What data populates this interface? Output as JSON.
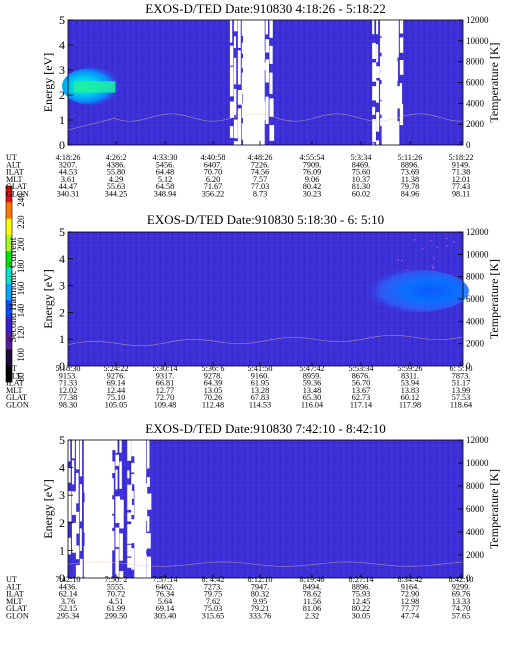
{
  "colorbar": {
    "label": "Second Harmonic Current",
    "ticks": [
      "240",
      "220",
      "200",
      "180",
      "160",
      "140",
      "120",
      "100",
      "80"
    ],
    "colors": [
      "#e01010",
      "#ff7a00",
      "#ffff00",
      "#a0ff20",
      "#00e600",
      "#00e6c8",
      "#00aaff",
      "#0050ff",
      "#3c1ed0",
      "#5a1e96",
      "#1e0a3c",
      "#000000"
    ]
  },
  "chart_data": [
    {
      "type": "heatmap",
      "title": "EXOS-D/TED   Date:910830  4:18:26 - 5:18:22",
      "ylabel": "Energy [eV]",
      "y2label": "Temperature [K]",
      "ylim": [
        0,
        5
      ],
      "y2lim": [
        0,
        12000
      ],
      "yticks": [
        "0",
        "1",
        "2",
        "3",
        "4",
        "5"
      ],
      "y2ticks": [
        "0",
        "2000",
        "4000",
        "6000",
        "8000",
        "10000",
        "12000"
      ],
      "background": "#3c2fd6",
      "features": [
        {
          "kind": "high-intensity blob",
          "x": [
            0.0,
            0.13
          ],
          "y": [
            1.6,
            3.1
          ],
          "color": "#00e0d0"
        },
        {
          "kind": "gap",
          "x": [
            0.41,
            0.52
          ],
          "y": [
            0,
            5
          ]
        },
        {
          "kind": "gap",
          "x": [
            0.77,
            0.85
          ],
          "y": [
            0,
            5
          ]
        },
        {
          "kind": "temperature trace",
          "color": "#e8c0a0"
        }
      ],
      "row_labels": [
        "UT",
        "ALT",
        "ILAT",
        "MLT",
        "GLAT",
        "GLON"
      ],
      "columns": [
        [
          "4:18:26",
          "3207.",
          "44.53",
          "3.61",
          "44.47",
          "340.31"
        ],
        [
          "4:26:2",
          "4386.",
          "55.80",
          "4.29",
          "55.63",
          "344.25"
        ],
        [
          "4:33:30",
          "5456.",
          "64.48",
          "5.12",
          "64.58",
          "348.94"
        ],
        [
          "4:40:58",
          "6407.",
          "70.70",
          "6.20",
          "71.67",
          "356.22"
        ],
        [
          "4:48:26",
          "7226.",
          "74.56",
          "7.57",
          "77.03",
          "8.73"
        ],
        [
          "4:55:54",
          "7909.",
          "76.09",
          "9.06",
          "80.42",
          "30.23"
        ],
        [
          "5:3:34",
          "8469.",
          "75.60",
          "10.37",
          "81.30",
          "60.02"
        ],
        [
          "5:11:26",
          "8896.",
          "73.69",
          "11.38",
          "79.78",
          "84.96"
        ],
        [
          "5:18:22",
          "9149.",
          "71.38",
          "12.01",
          "77.43",
          "98.11"
        ]
      ]
    },
    {
      "type": "heatmap",
      "title": "EXOS-D/TED   Date:910830  5:18:30 - 6: 5:10",
      "ylabel": "Energy [eV]",
      "y2label": "Temperature [K]",
      "ylim": [
        0,
        5
      ],
      "y2lim": [
        0,
        12000
      ],
      "yticks": [
        "0",
        "1",
        "2",
        "3",
        "4",
        "5"
      ],
      "y2ticks": [
        "0",
        "2000",
        "4000",
        "6000",
        "8000",
        "10000",
        "12000"
      ],
      "background": "#3c2fd6",
      "features": [
        {
          "kind": "high-intensity blob",
          "x": [
            0.75,
            1.0
          ],
          "y": [
            2.0,
            3.6
          ],
          "color": "#0a6aff"
        },
        {
          "kind": "temperature trace",
          "color": "#e8c0a0"
        }
      ],
      "row_labels": [
        "UT",
        "ALT",
        "ILAT",
        "MLT",
        "GLAT",
        "GLON"
      ],
      "columns": [
        [
          "5:18:30",
          "9153.",
          "71.33",
          "12.02",
          "77.38",
          "98.30"
        ],
        [
          "5:24:22",
          "9276.",
          "69.14",
          "12.44",
          "75.10",
          "105.05"
        ],
        [
          "5:30:14",
          "9317.",
          "66.81",
          "12.77",
          "72.70",
          "109.48"
        ],
        [
          "5:36: 6",
          "9278.",
          "64.39",
          "13.05",
          "70.26",
          "112.48"
        ],
        [
          "5:41:50",
          "9160.",
          "61.95",
          "13.28",
          "67.83",
          "114.53"
        ],
        [
          "5:47:42",
          "8959.",
          "59.36",
          "13.48",
          "65.30",
          "116.04"
        ],
        [
          "5:53:34",
          "8676.",
          "56.70",
          "13.67",
          "62.73",
          "117.14"
        ],
        [
          "5:59:26",
          "8311.",
          "53.94",
          "13.83",
          "60.12",
          "117.98"
        ],
        [
          "6: 5:10",
          "7873.",
          "51.17",
          "13.99",
          "57.53",
          "118.64"
        ]
      ]
    },
    {
      "type": "heatmap",
      "title": "EXOS-D/TED   Date:910830  7:42:10 - 8:42:10",
      "ylabel": "Energy [eV]",
      "y2label": "Temperature [K]",
      "ylim": [
        0,
        5
      ],
      "y2lim": [
        0,
        12000
      ],
      "yticks": [
        "0",
        "1",
        "2",
        "3",
        "4",
        "5"
      ],
      "y2ticks": [
        "0",
        "2000",
        "4000",
        "6000",
        "8000",
        "10000",
        "12000"
      ],
      "background": "#3c2fd6",
      "features": [
        {
          "kind": "gap",
          "x": [
            0.0,
            0.14
          ],
          "y": [
            0,
            5
          ]
        },
        {
          "kind": "gap",
          "x": [
            0.15,
            0.21
          ],
          "y": [
            0,
            5
          ]
        },
        {
          "kind": "temperature trace",
          "color": "#e8c0a0"
        }
      ],
      "row_labels": [
        "UT",
        "ALT",
        "ILAT",
        "MLT",
        "GLAT",
        "GLON"
      ],
      "columns": [
        [
          "7:42:10",
          "4436.",
          "62.14",
          "3.76",
          "52.15",
          "295.34"
        ],
        [
          "7:50: 2",
          "5555.",
          "70.72",
          "4.51",
          "61.99",
          "299.50"
        ],
        [
          "7:57:14",
          "6462.",
          "76.34",
          "5.64",
          "69.14",
          "305.40"
        ],
        [
          "8: 4:42",
          "7273.",
          "79.75",
          "7.62",
          "75.03",
          "315.65"
        ],
        [
          "8:12:10",
          "7947.",
          "80.32",
          "9.95",
          "79.21",
          "333.76"
        ],
        [
          "8:19:46",
          "8494.",
          "78.62",
          "11.56",
          "81.06",
          "2.32"
        ],
        [
          "8:27:14",
          "8896.",
          "75.93",
          "12.45",
          "80.22",
          "30.05"
        ],
        [
          "8:34:42",
          "9164.",
          "72.90",
          "12.98",
          "77.77",
          "47.74"
        ],
        [
          "8:42:10",
          "9299.",
          "69.76",
          "13.33",
          "74.70",
          "57.65"
        ]
      ]
    }
  ]
}
